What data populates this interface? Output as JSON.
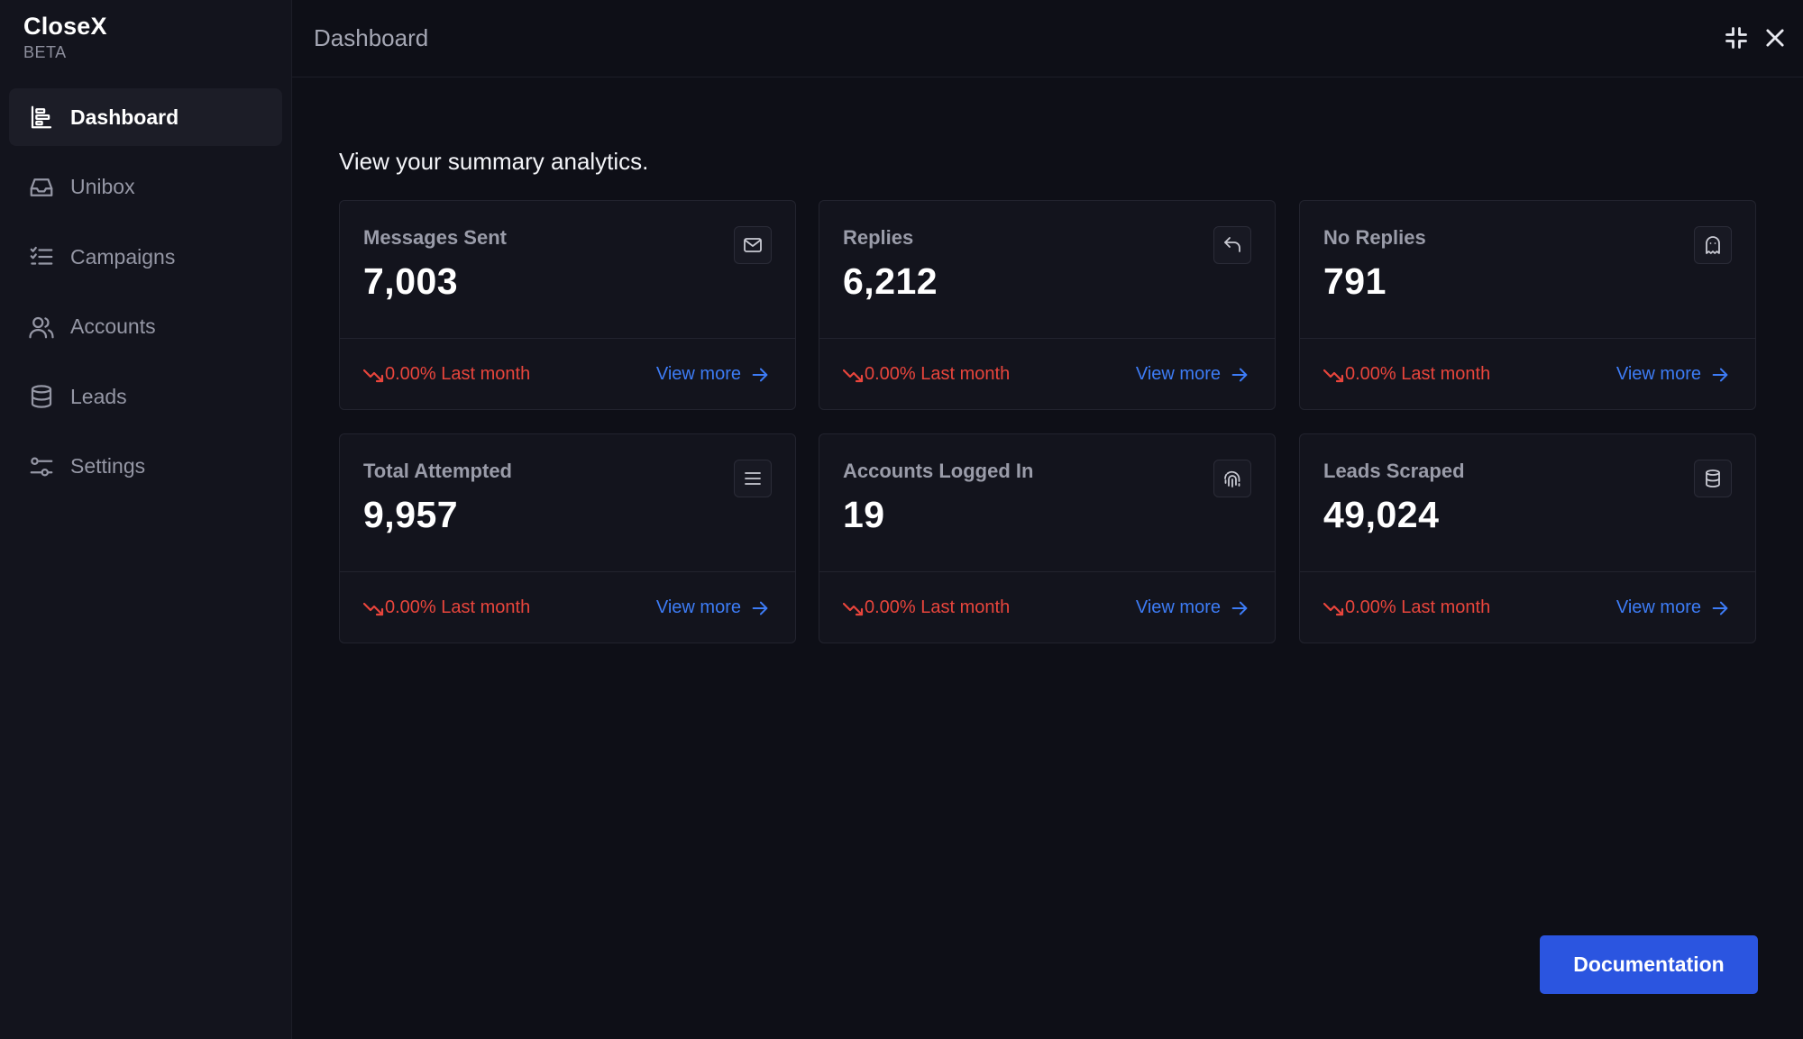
{
  "brand": {
    "name": "CloseX",
    "tag": "BETA"
  },
  "sidebar": {
    "items": [
      {
        "label": "Dashboard",
        "icon": "dashboard-icon",
        "active": true
      },
      {
        "label": "Unibox",
        "icon": "inbox-icon",
        "active": false
      },
      {
        "label": "Campaigns",
        "icon": "checklist-icon",
        "active": false
      },
      {
        "label": "Accounts",
        "icon": "users-icon",
        "active": false
      },
      {
        "label": "Leads",
        "icon": "database-icon",
        "active": false
      },
      {
        "label": "Settings",
        "icon": "sliders-icon",
        "active": false
      }
    ]
  },
  "header": {
    "title": "Dashboard"
  },
  "main": {
    "subtitle": "View your summary analytics.",
    "cards": [
      {
        "label": "Messages Sent",
        "value": "7,003",
        "icon": "mail-icon",
        "trend": "0.00% Last month",
        "link": "View more"
      },
      {
        "label": "Replies",
        "value": "6,212",
        "icon": "reply-icon",
        "trend": "0.00% Last month",
        "link": "View more"
      },
      {
        "label": "No Replies",
        "value": "791",
        "icon": "ghost-icon",
        "trend": "0.00% Last month",
        "link": "View more"
      },
      {
        "label": "Total Attempted",
        "value": "9,957",
        "icon": "menu-icon",
        "trend": "0.00% Last month",
        "link": "View more"
      },
      {
        "label": "Accounts Logged In",
        "value": "19",
        "icon": "fingerprint-icon",
        "trend": "0.00% Last month",
        "link": "View more"
      },
      {
        "label": "Leads Scraped",
        "value": "49,024",
        "icon": "database-icon",
        "trend": "0.00% Last month",
        "link": "View more"
      }
    ],
    "documentation_label": "Documentation"
  },
  "colors": {
    "background": "#0e0f17",
    "sidebar": "#13141d",
    "card": "#13141d",
    "trend_down": "#e8453c",
    "link": "#3d7cf6",
    "primary_button": "#2b55e0"
  }
}
